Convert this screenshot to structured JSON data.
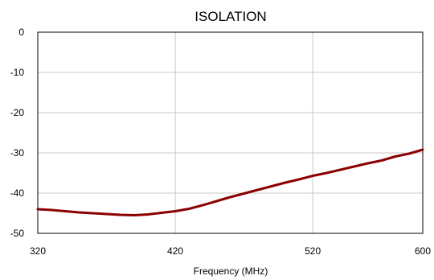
{
  "chart_data": {
    "type": "line",
    "title": "ISOLATION",
    "xlabel": "Frequency  (MHz)",
    "ylabel": "",
    "xlim": [
      320,
      600
    ],
    "ylim": [
      -50,
      0
    ],
    "x_ticks": [
      320,
      420,
      520,
      600
    ],
    "y_ticks": [
      0,
      -10,
      -20,
      -30,
      -40,
      -50
    ],
    "grid": true,
    "legend": "none",
    "series": [
      {
        "color": "#8b0000",
        "x": [
          320,
          330,
          340,
          350,
          360,
          370,
          380,
          390,
          400,
          410,
          420,
          430,
          440,
          450,
          460,
          470,
          480,
          490,
          500,
          510,
          520,
          530,
          540,
          550,
          560,
          570,
          580,
          590,
          600
        ],
        "y": [
          -44.0,
          -44.2,
          -44.5,
          -44.8,
          -45.0,
          -45.2,
          -45.4,
          -45.5,
          -45.3,
          -44.9,
          -44.5,
          -43.9,
          -43.0,
          -42.0,
          -41.0,
          -40.1,
          -39.2,
          -38.3,
          -37.4,
          -36.6,
          -35.7,
          -35.0,
          -34.2,
          -33.4,
          -32.6,
          -31.9,
          -30.9,
          -30.2,
          -29.2
        ]
      }
    ]
  }
}
